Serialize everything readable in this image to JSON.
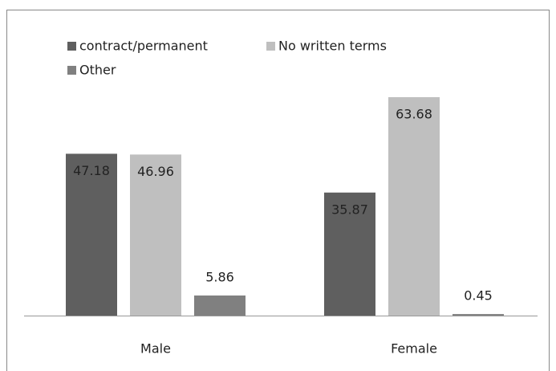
{
  "chart_data": {
    "type": "bar",
    "categories": [
      "Male",
      "Female"
    ],
    "series": [
      {
        "name": "contract/permanent",
        "color": "#5f5f5f",
        "values": [
          47.18,
          35.87
        ]
      },
      {
        "name": "No written terms",
        "color": "#bfbfbf",
        "values": [
          46.96,
          63.68
        ]
      },
      {
        "name": "Other",
        "color": "#808080",
        "values": [
          5.86,
          0.45
        ]
      }
    ],
    "legend": "top-left"
  }
}
